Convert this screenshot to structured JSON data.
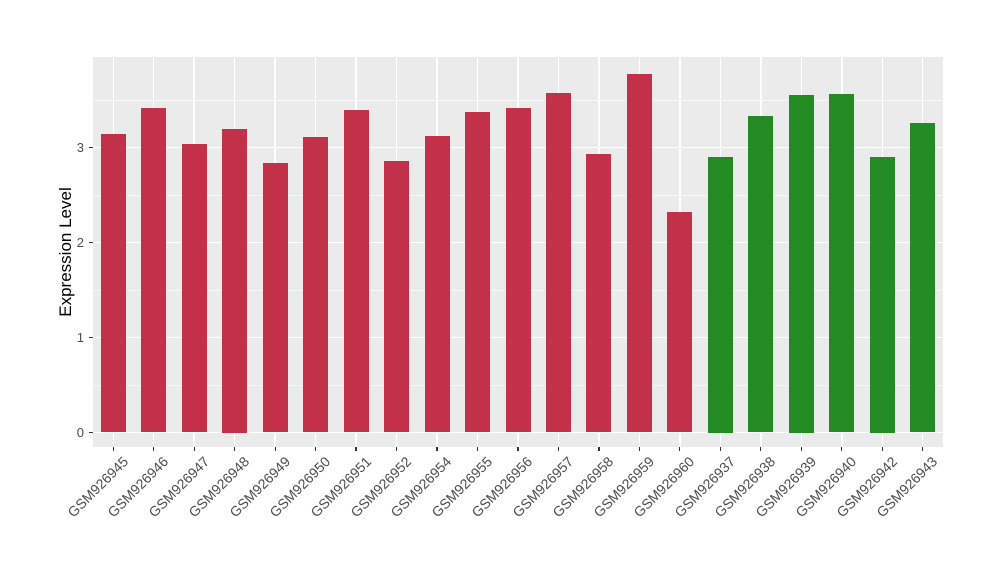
{
  "chart_data": {
    "type": "bar",
    "title": "",
    "xlabel": "",
    "ylabel": "Expression Level",
    "ylim": [
      -0.15,
      3.95
    ],
    "yticks": [
      0,
      1,
      2,
      3
    ],
    "ytick_labels": [
      "0",
      "1",
      "2",
      "3"
    ],
    "yminor_gridlines": [
      0.5,
      1.5,
      2.5,
      3.5
    ],
    "grid": true,
    "legend_position": "none",
    "categories": [
      "GSM926945",
      "GSM926946",
      "GSM926947",
      "GSM926948",
      "GSM926949",
      "GSM926950",
      "GSM926951",
      "GSM926952",
      "GSM926954",
      "GSM926955",
      "GSM926956",
      "GSM926957",
      "GSM926958",
      "GSM926959",
      "GSM926960",
      "GSM926937",
      "GSM926938",
      "GSM926939",
      "GSM926940",
      "GSM926942",
      "GSM926943"
    ],
    "series": [
      {
        "name": "expression",
        "values": [
          3.14,
          3.42,
          3.04,
          3.2,
          2.84,
          3.11,
          3.39,
          2.86,
          3.12,
          3.37,
          3.42,
          3.57,
          2.93,
          3.77,
          2.32,
          2.9,
          3.33,
          3.55,
          3.56,
          2.9,
          3.26
        ]
      }
    ],
    "bar_groups": [
      "red",
      "red",
      "red",
      "red",
      "red",
      "red",
      "red",
      "red",
      "red",
      "red",
      "red",
      "red",
      "red",
      "red",
      "red",
      "green",
      "green",
      "green",
      "green",
      "green",
      "green"
    ],
    "group_colors": {
      "red": "#C23049",
      "green": "#228B22"
    },
    "panel_background": "#EBEBEB",
    "gridline_color": "#FFFFFF",
    "axis_text_color": "#4D4D4D",
    "axis_title_color": "#000000",
    "tick_color": "#333333",
    "figure_background": "#FFFFFF"
  }
}
